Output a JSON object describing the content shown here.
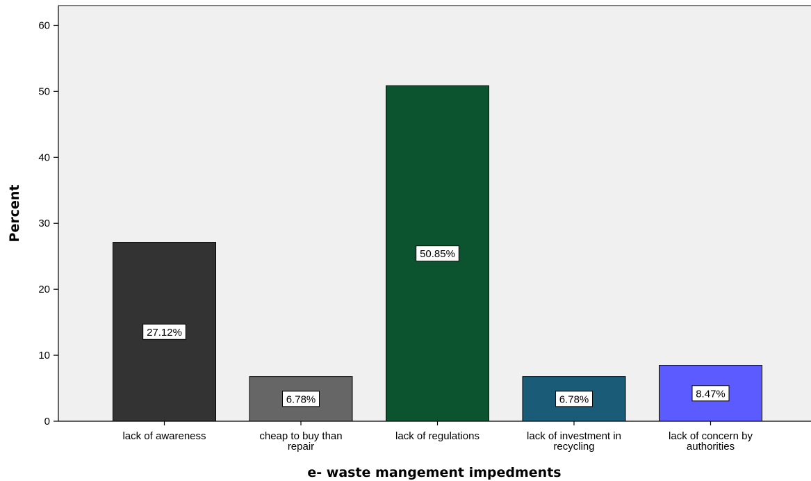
{
  "chart_data": {
    "type": "bar",
    "title": "",
    "xlabel": "e- waste mangement impedments",
    "ylabel": "Percent",
    "categories": [
      [
        "lack of awareness"
      ],
      [
        "cheap to buy than",
        "repair"
      ],
      [
        "lack of regulations"
      ],
      [
        "lack of investment in",
        "recycling"
      ],
      [
        "lack of concern by",
        "authorities"
      ]
    ],
    "values": [
      27.12,
      6.78,
      50.85,
      6.78,
      8.47
    ],
    "data_labels": [
      "27.12%",
      "6.78%",
      "50.85%",
      "6.78%",
      "8.47%"
    ],
    "colors": [
      "#333333",
      "#666666",
      "#0c5430",
      "#1a5b78",
      "#5b5bff"
    ],
    "ylim": [
      0,
      63
    ],
    "yticks": [
      0,
      10,
      20,
      30,
      40,
      50,
      60
    ],
    "plot_background": "#f0f0f0",
    "grid": false,
    "legend": "none"
  }
}
